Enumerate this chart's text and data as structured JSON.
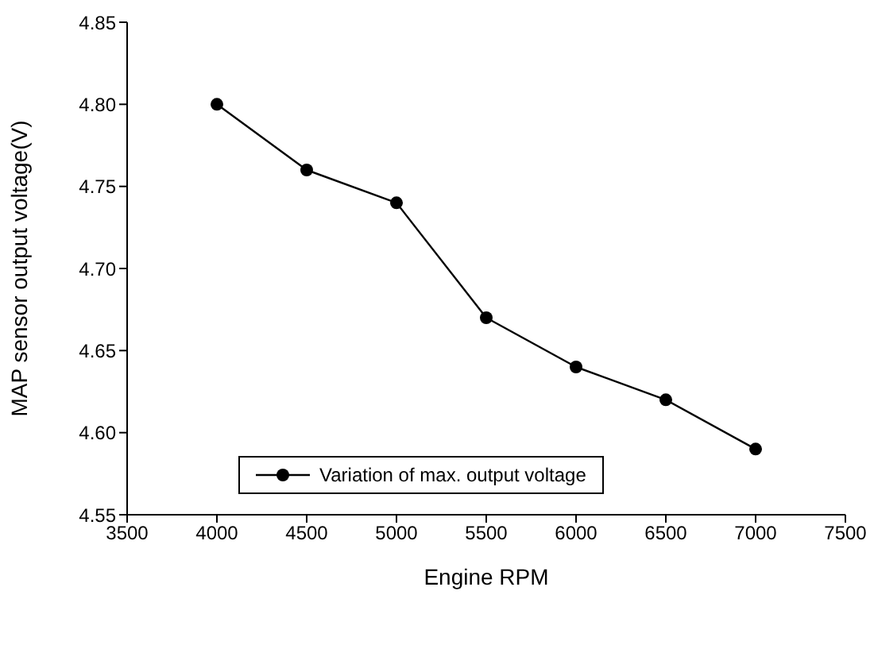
{
  "chart_data": {
    "type": "line",
    "xlabel": "Engine RPM",
    "ylabel": "MAP sensor  output  voltage(V)",
    "x": [
      4000,
      4500,
      5000,
      5500,
      6000,
      6500,
      7000
    ],
    "series": [
      {
        "name": "Variation of max. output voltage",
        "color": "#000000",
        "values": [
          4.8,
          4.76,
          4.74,
          4.67,
          4.64,
          4.62,
          4.59
        ]
      }
    ],
    "xlim": [
      3500,
      7500
    ],
    "xticks": [
      3500,
      4000,
      4500,
      5000,
      5500,
      6000,
      6500,
      7000,
      7500
    ],
    "ylim": [
      4.55,
      4.85
    ],
    "yticks": [
      {
        "value": 4.55,
        "label": "4.55"
      },
      {
        "value": 4.6,
        "label": "4.60"
      },
      {
        "value": 4.65,
        "label": "4.65"
      },
      {
        "value": 4.7,
        "label": "4.70"
      },
      {
        "value": 4.75,
        "label": "4.75"
      },
      {
        "value": 4.8,
        "label": "4.80"
      },
      {
        "value": 4.85,
        "label": "4.85"
      }
    ],
    "grid": false,
    "legend": "bottom left",
    "marker": "circle",
    "line_style": "solid"
  }
}
